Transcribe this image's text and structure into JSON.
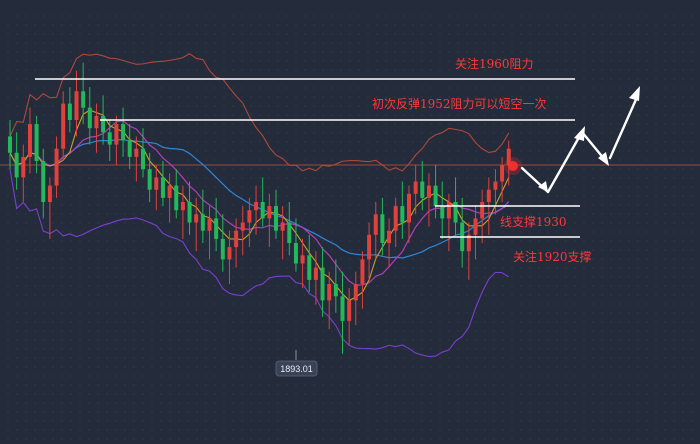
{
  "chart_data": {
    "type": "candlestick",
    "low_label": "1893.01",
    "annotations": {
      "resistance_1960": "关注1960阻力",
      "rebound_1952": "初次反弹1952阻力可以短空一次",
      "support_1930": "线支撑1930",
      "support_1920": "关注1920支撑"
    },
    "levels": {
      "resistance_1960": 1960,
      "rebound_1952": 1952,
      "support_1930": 1930,
      "support_1920": 1920,
      "current_price": 1943
    },
    "candles": [
      [
        1946,
        1950,
        1938,
        1942
      ],
      [
        1942,
        1947,
        1933,
        1936
      ],
      [
        1936,
        1944,
        1930,
        1941
      ],
      [
        1941,
        1953,
        1937,
        1949
      ],
      [
        1949,
        1951,
        1937,
        1940
      ],
      [
        1940,
        1943,
        1926,
        1930
      ],
      [
        1930,
        1936,
        1921,
        1934
      ],
      [
        1934,
        1946,
        1931,
        1943
      ],
      [
        1943,
        1957,
        1940,
        1954
      ],
      [
        1954,
        1958,
        1947,
        1950
      ],
      [
        1950,
        1962,
        1946,
        1957
      ],
      [
        1957,
        1964,
        1949,
        1953
      ],
      [
        1953,
        1958,
        1944,
        1948
      ],
      [
        1948,
        1954,
        1942,
        1951
      ],
      [
        1951,
        1956,
        1944,
        1947
      ],
      [
        1947,
        1950,
        1940,
        1944
      ],
      [
        1944,
        1951,
        1939,
        1949
      ],
      [
        1949,
        1953,
        1941,
        1945
      ],
      [
        1945,
        1949,
        1938,
        1941
      ],
      [
        1941,
        1946,
        1935,
        1943
      ],
      [
        1943,
        1948,
        1936,
        1938
      ],
      [
        1938,
        1942,
        1930,
        1933
      ],
      [
        1933,
        1939,
        1928,
        1936
      ],
      [
        1936,
        1940,
        1929,
        1931
      ],
      [
        1931,
        1937,
        1925,
        1934
      ],
      [
        1934,
        1938,
        1926,
        1928
      ],
      [
        1928,
        1934,
        1921,
        1930
      ],
      [
        1930,
        1935,
        1922,
        1925
      ],
      [
        1925,
        1931,
        1918,
        1927
      ],
      [
        1927,
        1933,
        1920,
        1923
      ],
      [
        1923,
        1929,
        1916,
        1926
      ],
      [
        1926,
        1931,
        1918,
        1921
      ],
      [
        1921,
        1927,
        1913,
        1916
      ],
      [
        1916,
        1923,
        1910,
        1919
      ],
      [
        1919,
        1926,
        1914,
        1923
      ],
      [
        1923,
        1929,
        1917,
        1925
      ],
      [
        1925,
        1931,
        1919,
        1928
      ],
      [
        1928,
        1934,
        1922,
        1930
      ],
      [
        1930,
        1936,
        1924,
        1926
      ],
      [
        1926,
        1932,
        1919,
        1929
      ],
      [
        1929,
        1933,
        1921,
        1923
      ],
      [
        1923,
        1929,
        1916,
        1925
      ],
      [
        1925,
        1930,
        1917,
        1920
      ],
      [
        1920,
        1926,
        1913,
        1915
      ],
      [
        1915,
        1921,
        1909,
        1917
      ],
      [
        1917,
        1922,
        1908,
        1911
      ],
      [
        1911,
        1918,
        1905,
        1914
      ],
      [
        1914,
        1919,
        1902,
        1906
      ],
      [
        1906,
        1913,
        1899,
        1910
      ],
      [
        1910,
        1916,
        1903,
        1907
      ],
      [
        1907,
        1913,
        1893,
        1901
      ],
      [
        1901,
        1909,
        1895,
        1906
      ],
      [
        1906,
        1913,
        1900,
        1910
      ],
      [
        1910,
        1918,
        1904,
        1916
      ],
      [
        1916,
        1925,
        1911,
        1922
      ],
      [
        1922,
        1930,
        1916,
        1927
      ],
      [
        1927,
        1931,
        1917,
        1920
      ],
      [
        1920,
        1926,
        1914,
        1923
      ],
      [
        1923,
        1931,
        1919,
        1929
      ],
      [
        1929,
        1935,
        1921,
        1925
      ],
      [
        1925,
        1934,
        1920,
        1932
      ],
      [
        1932,
        1939,
        1927,
        1935
      ],
      [
        1935,
        1940,
        1928,
        1931
      ],
      [
        1931,
        1937,
        1924,
        1934
      ],
      [
        1934,
        1939,
        1926,
        1929
      ],
      [
        1929,
        1935,
        1921,
        1926
      ],
      [
        1926,
        1932,
        1918,
        1930
      ],
      [
        1930,
        1936,
        1922,
        1925
      ],
      [
        1925,
        1931,
        1914,
        1918
      ],
      [
        1918,
        1925,
        1911,
        1922
      ],
      [
        1922,
        1929,
        1916,
        1926
      ],
      [
        1926,
        1933,
        1920,
        1930
      ],
      [
        1930,
        1936,
        1922,
        1933
      ],
      [
        1933,
        1938,
        1927,
        1935
      ],
      [
        1935,
        1941,
        1930,
        1939
      ],
      [
        1939,
        1945,
        1934,
        1943
      ]
    ]
  }
}
